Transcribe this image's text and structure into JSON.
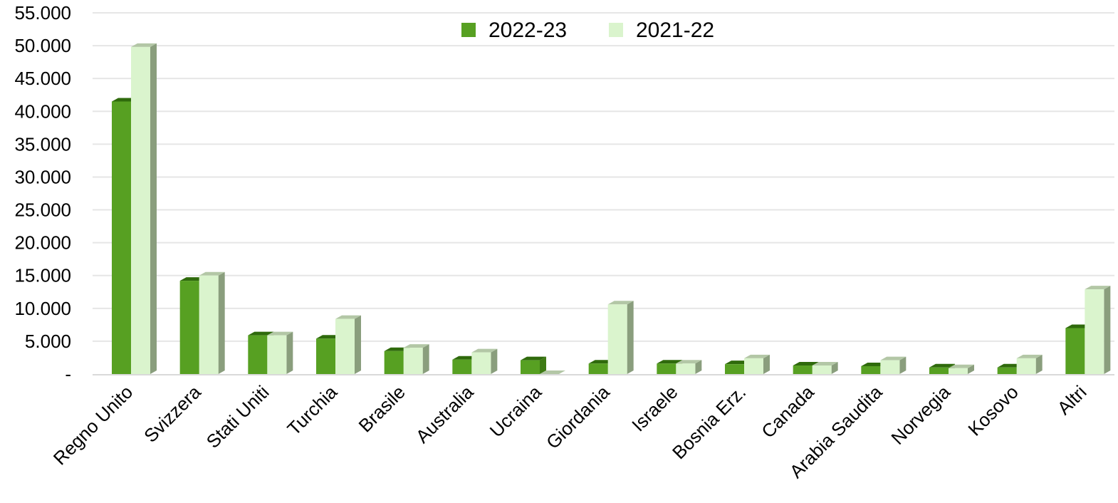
{
  "chart_data": {
    "type": "bar",
    "title": "",
    "xlabel": "",
    "ylabel": "",
    "ylim": [
      0,
      55000
    ],
    "yticks": [
      0,
      5000,
      10000,
      15000,
      20000,
      25000,
      30000,
      35000,
      40000,
      45000,
      50000,
      55000
    ],
    "ytick_labels": [
      "-",
      "5.000",
      "10.000",
      "15.000",
      "20.000",
      "25.000",
      "30.000",
      "35.000",
      "40.000",
      "45.000",
      "50.000",
      "55.000"
    ],
    "grid": true,
    "legend_position": "top-center",
    "categories": [
      "Regno Unito",
      "Svizzera",
      "Stati Uniti",
      "Turchia",
      "Brasile",
      "Australia",
      "Ucraina",
      "Giordania",
      "Israele",
      "Bosnia Erz.",
      "Canada",
      "Arabia Saudita",
      "Norvegia",
      "Kosovo",
      "Altri"
    ],
    "series": [
      {
        "name": "2022-23",
        "color": "#57a022",
        "values": [
          41500,
          14200,
          5900,
          5400,
          3500,
          2200,
          2100,
          1600,
          1600,
          1500,
          1300,
          1200,
          1000,
          1000,
          7000
        ]
      },
      {
        "name": "2021-22",
        "color": "#daf4cd",
        "values": [
          49800,
          15000,
          5900,
          8400,
          4000,
          3300,
          0,
          10600,
          1600,
          2400,
          1300,
          2100,
          900,
          2400,
          12900
        ]
      }
    ]
  }
}
